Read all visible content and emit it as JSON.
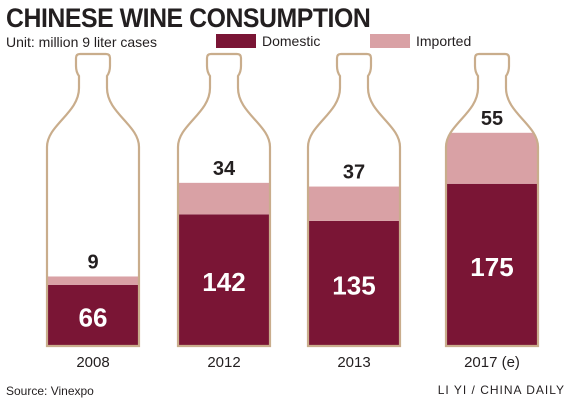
{
  "chart_data": {
    "type": "bar",
    "stacked": true,
    "title": "CHINESE WINE CONSUMPTION",
    "unit_label": "Unit: million 9 liter cases",
    "categories": [
      "2008",
      "2012",
      "2013",
      "2017 (e)"
    ],
    "series": [
      {
        "name": "Domestic",
        "values": [
          66,
          142,
          135,
          175
        ],
        "color": "#7a1535"
      },
      {
        "name": "Imported",
        "values": [
          9,
          34,
          37,
          55
        ],
        "color": "#d9a1a5"
      }
    ],
    "legend_position": "top",
    "grid": false,
    "bottle_outline_color": "#c9ad8c"
  },
  "source": "Source: Vinexpo",
  "credit": "LI YI / CHINA DAILY"
}
